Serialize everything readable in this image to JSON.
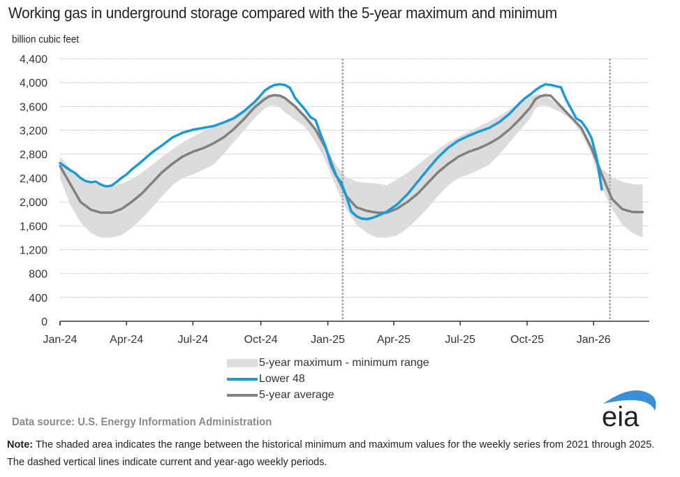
{
  "title": "Working gas in underground  storage compared with the 5-year maximum and minimum",
  "unit_label": "billion cubic feet",
  "legend": {
    "range": "5-year maximum - minimum range",
    "lower48": "Lower 48",
    "average": "5-year average"
  },
  "source": "Data source:  U.S. Energy Information Administration",
  "note_label": "Note:",
  "note_text": " The shaded area indicates the range between the historical minimum and maximum values for the weekly series from 2021 through 2025. The dashed vertical lines indicate current and year-ago weekly periods.",
  "logo_text": "eia",
  "colors": {
    "lower48": "#1a9ad6",
    "average": "#808080",
    "range": "#dcdcdc",
    "grid": "#c8c8c8",
    "dashed": "#a8a8a8",
    "logo_arc": "#3a8fd9",
    "logo_text": "#222222"
  },
  "chart_data": {
    "type": "area",
    "title": "Working gas in underground  storage compared with the 5-year maximum and minimum",
    "ylabel": "billion cubic feet",
    "xlabel": "",
    "ylim": [
      0,
      4400
    ],
    "yticks": [
      0,
      400,
      800,
      1200,
      1600,
      2000,
      2400,
      2800,
      3200,
      3600,
      4000,
      4400
    ],
    "ytick_labels": [
      "0",
      "400",
      "800",
      "1,200",
      "1,600",
      "2,000",
      "2,400",
      "2,800",
      "3,200",
      "3,600",
      "4,000",
      "4,400"
    ],
    "xlim_weeks": [
      0,
      119
    ],
    "xticks": [
      {
        "label": "Jan-24",
        "week": 0
      },
      {
        "label": "Apr-24",
        "week": 13
      },
      {
        "label": "Jul-24",
        "week": 26
      },
      {
        "label": "Oct-24",
        "week": 39.3
      },
      {
        "label": "Jan-25",
        "week": 52.4
      },
      {
        "label": "Apr-25",
        "week": 65.3
      },
      {
        "label": "Jul-25",
        "week": 78.3
      },
      {
        "label": "Oct-25",
        "week": 91.4
      },
      {
        "label": "Jan-26",
        "week": 104.4
      }
    ],
    "grid": true,
    "legend_position": "bottom-center",
    "dashed_lines_week": [
      55.3,
      107.6
    ],
    "x_unit": "weeks since first week of Jan 2024",
    "series": [
      {
        "name": "5-year maximum",
        "weeks": [
          0,
          2,
          4,
          6,
          8,
          10,
          12,
          14,
          16,
          18,
          20,
          22,
          24,
          26,
          28,
          30,
          32,
          34,
          36,
          38,
          40,
          41,
          42,
          43,
          44,
          46,
          48,
          50,
          52,
          54,
          56,
          58,
          60,
          62,
          64,
          66,
          68,
          70,
          72,
          74,
          76,
          78,
          80,
          82,
          84,
          86,
          88,
          90,
          92,
          93,
          94,
          95,
          96,
          98,
          100,
          102,
          104,
          106,
          108,
          110,
          112,
          114
        ],
        "values": [
          2760,
          2560,
          2400,
          2330,
          2280,
          2270,
          2300,
          2380,
          2490,
          2620,
          2760,
          2880,
          3000,
          3090,
          3180,
          3260,
          3350,
          3440,
          3550,
          3680,
          3780,
          3800,
          3800,
          3780,
          3720,
          3580,
          3460,
          3260,
          2930,
          2620,
          2420,
          2340,
          2320,
          2310,
          2280,
          2380,
          2490,
          2620,
          2760,
          2880,
          3000,
          3090,
          3180,
          3260,
          3350,
          3440,
          3550,
          3680,
          3780,
          3800,
          3800,
          3780,
          3720,
          3580,
          3460,
          3260,
          2930,
          2560,
          2420,
          2340,
          2300,
          2290
        ]
      },
      {
        "name": "5-year minimum",
        "weeks": [
          0,
          2,
          4,
          6,
          8,
          10,
          12,
          14,
          16,
          18,
          20,
          22,
          24,
          26,
          28,
          30,
          32,
          34,
          36,
          38,
          40,
          41,
          42,
          43,
          44,
          46,
          48,
          50,
          52,
          54,
          56,
          58,
          60,
          62,
          64,
          66,
          68,
          70,
          72,
          74,
          76,
          78,
          80,
          82,
          84,
          86,
          88,
          90,
          92,
          93,
          94,
          95,
          96,
          98,
          100,
          102,
          104,
          106,
          108,
          110,
          112,
          114
        ],
        "values": [
          2400,
          1950,
          1660,
          1480,
          1400,
          1400,
          1440,
          1560,
          1720,
          1900,
          2100,
          2280,
          2400,
          2460,
          2540,
          2620,
          2800,
          3000,
          3200,
          3400,
          3560,
          3620,
          3620,
          3580,
          3500,
          3380,
          3250,
          3000,
          2680,
          2250,
          1880,
          1620,
          1480,
          1400,
          1400,
          1440,
          1560,
          1720,
          1900,
          2100,
          2280,
          2400,
          2460,
          2540,
          2620,
          2800,
          3000,
          3200,
          3400,
          3560,
          3620,
          3620,
          3580,
          3500,
          3380,
          3150,
          2800,
          2250,
          1880,
          1620,
          1480,
          1400
        ]
      },
      {
        "name": "Lower 48",
        "weeks": [
          0,
          1,
          2,
          3,
          4,
          5,
          6,
          7,
          8,
          9,
          10,
          11,
          12,
          13,
          14,
          16,
          18,
          20,
          22,
          24,
          26,
          28,
          30,
          32,
          34,
          36,
          38,
          39,
          40,
          41,
          42,
          43,
          44,
          45,
          46,
          47,
          48,
          49,
          50,
          51,
          52,
          53,
          54,
          55,
          56,
          57,
          58,
          59,
          60,
          61,
          62,
          64,
          66,
          68,
          70,
          72,
          74,
          76,
          78,
          80,
          82,
          84,
          86,
          88,
          90,
          91,
          92,
          93,
          94,
          95,
          96,
          97,
          98,
          99,
          100,
          101,
          102,
          103,
          104,
          105,
          106
        ],
        "values": [
          2650,
          2590,
          2530,
          2480,
          2400,
          2350,
          2330,
          2340,
          2290,
          2260,
          2270,
          2330,
          2400,
          2460,
          2540,
          2680,
          2830,
          2950,
          3080,
          3160,
          3210,
          3240,
          3270,
          3330,
          3400,
          3520,
          3670,
          3760,
          3860,
          3920,
          3960,
          3970,
          3960,
          3910,
          3740,
          3640,
          3540,
          3420,
          3370,
          3130,
          2920,
          2620,
          2440,
          2330,
          2100,
          1840,
          1760,
          1720,
          1710,
          1730,
          1760,
          1840,
          1960,
          2130,
          2340,
          2550,
          2750,
          2910,
          3030,
          3110,
          3180,
          3240,
          3340,
          3480,
          3660,
          3740,
          3800,
          3870,
          3930,
          3970,
          3960,
          3940,
          3920,
          3720,
          3560,
          3400,
          3350,
          3230,
          3070,
          2740,
          2210
        ]
      },
      {
        "name": "5-year average",
        "weeks": [
          0,
          2,
          4,
          6,
          8,
          10,
          12,
          14,
          16,
          18,
          20,
          22,
          24,
          26,
          28,
          30,
          32,
          34,
          36,
          38,
          40,
          41,
          42,
          43,
          44,
          46,
          48,
          50,
          52,
          54,
          55,
          56,
          58,
          60,
          62,
          64,
          66,
          68,
          70,
          72,
          74,
          76,
          78,
          80,
          82,
          84,
          86,
          88,
          90,
          92,
          93,
          94,
          95,
          96,
          98,
          100,
          102,
          104,
          106,
          108,
          110,
          112,
          114
        ],
        "values": [
          2600,
          2300,
          2000,
          1870,
          1820,
          1820,
          1880,
          2000,
          2140,
          2320,
          2500,
          2640,
          2760,
          2840,
          2900,
          2980,
          3080,
          3220,
          3390,
          3580,
          3720,
          3770,
          3790,
          3780,
          3740,
          3600,
          3420,
          3210,
          2900,
          2450,
          2280,
          2100,
          1910,
          1850,
          1820,
          1820,
          1890,
          2000,
          2140,
          2320,
          2500,
          2640,
          2760,
          2840,
          2900,
          2980,
          3080,
          3220,
          3390,
          3580,
          3720,
          3770,
          3790,
          3780,
          3600,
          3420,
          3240,
          2900,
          2460,
          2050,
          1880,
          1830,
          1830
        ]
      }
    ]
  }
}
